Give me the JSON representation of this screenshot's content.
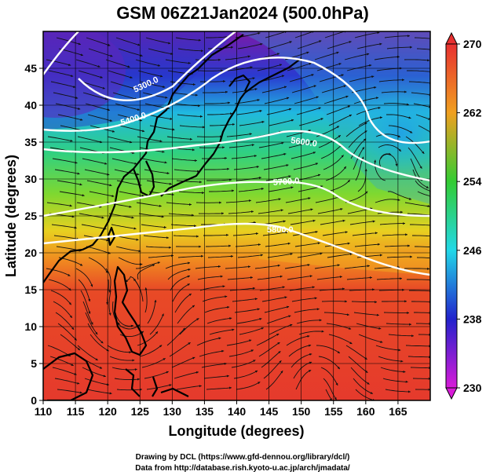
{
  "title": "GSM 06Z21Jan2024 (500.0hPa)",
  "xlabel": "Longitude (degrees)",
  "ylabel": "Latitude (degrees)",
  "credit_line1": "Drawing by DCL (https://www.gfd-dennou.org/library/dcl/)",
  "credit_line2": "Data from http://database.rish.kyoto-u.ac.jp/arch/jmadata/",
  "colors": {
    "temp_230": "#d81bd8",
    "temp_238": "#2222cc",
    "temp_246": "#22d8e8",
    "temp_254": "#33cc33",
    "temp_262": "#f0a020",
    "temp_270": "#e83030",
    "contour": "#ffffff",
    "streamline": "#111111"
  },
  "chart_data": {
    "type": "heatmap",
    "xlim": [
      110,
      170
    ],
    "ylim": [
      0,
      50
    ],
    "x_ticks": [
      "110",
      "115",
      "120",
      "125",
      "130",
      "135",
      "140",
      "145",
      "150",
      "155",
      "160",
      "165"
    ],
    "y_ticks": [
      "0",
      "5",
      "10",
      "15",
      "20",
      "25",
      "30",
      "35",
      "40",
      "45"
    ],
    "colorbar": {
      "min": 230,
      "max": 270,
      "ticks": [
        "230",
        "238",
        "246",
        "254",
        "262",
        "270"
      ]
    },
    "contours": [
      {
        "label": "5300.0"
      },
      {
        "label": "5400.0"
      },
      {
        "label": "5600.0"
      },
      {
        "label": "5700.0"
      },
      {
        "label": "5800.0"
      }
    ],
    "grid": true
  }
}
